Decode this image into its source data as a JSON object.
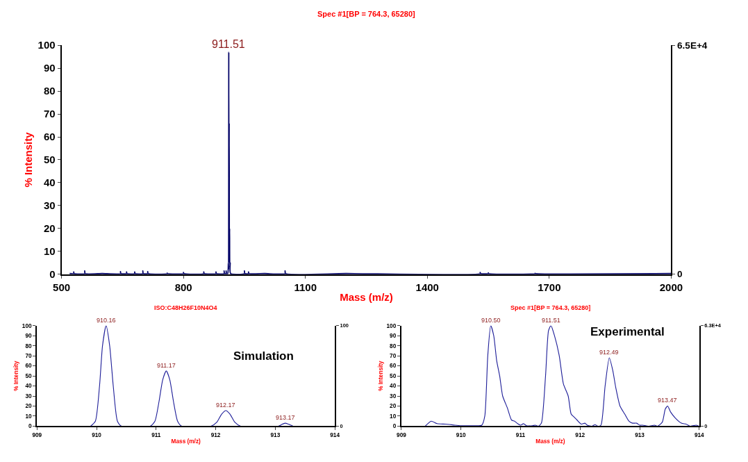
{
  "chart_data": [
    {
      "type": "line",
      "title": "Spec #1[BP = 764.3, 65280]",
      "xlabel": "Mass (m/z)",
      "ylabel": "% Intensity",
      "series": [
        {
          "color": "#000066",
          "x": [
            520,
            530,
            530,
            531,
            557,
            557,
            558,
            600,
            645,
            645,
            646,
            660,
            660,
            661,
            680,
            680,
            681,
            700,
            700,
            701,
            712,
            712,
            713,
            760,
            760,
            761,
            800,
            800,
            801,
            850,
            850,
            851,
            880,
            880,
            881,
            900,
            900,
            901,
            905,
            905,
            906,
            909,
            910.5,
            911,
            911.51,
            912,
            912.5,
            913,
            913.5,
            914,
            915,
            916,
            950,
            950,
            951,
            960,
            960,
            961,
            1000,
            1050,
            1050,
            1051,
            1200,
            1530,
            1530,
            1531,
            1550,
            1550,
            1551,
            1665,
            1665,
            1666,
            2000
          ],
          "values": [
            0.3,
            0.3,
            1,
            0.3,
            0.3,
            1.5,
            0.3,
            0.3,
            0.3,
            1.2,
            0.3,
            0.3,
            1,
            0.3,
            0.3,
            1,
            0.3,
            0.3,
            1.5,
            0.3,
            0.3,
            1.2,
            0.3,
            0.3,
            0.5,
            0.3,
            0.3,
            0.8,
            0.3,
            0.3,
            1,
            0.3,
            0.3,
            1,
            0.3,
            0.3,
            1.5,
            0.3,
            0.3,
            1.5,
            0.3,
            0.3,
            5,
            2,
            97,
            10,
            66,
            5,
            20,
            3,
            5,
            0.3,
            0.3,
            1.5,
            0.3,
            0.3,
            1,
            0.3,
            0.3,
            0.3,
            1.5,
            0.3,
            0.3,
            0.3,
            0.8,
            0.3,
            0.3,
            0.6,
            0.3,
            0.3,
            0.4,
            0.3,
            0.3
          ]
        }
      ],
      "xlim": [
        500,
        2000
      ],
      "xticks": [
        500,
        800,
        1100,
        1400,
        1700,
        2000
      ],
      "ylim": [
        0,
        100
      ],
      "yticks": [
        0,
        10,
        20,
        30,
        40,
        50,
        60,
        70,
        80,
        90,
        100
      ],
      "y2lim": [
        0,
        65000
      ],
      "y2ticks": [
        0,
        {
          "value": 65000,
          "label": "6.5E+4"
        }
      ],
      "annotations": [
        {
          "text": "911.51",
          "x": 911.51,
          "y": 97
        }
      ]
    },
    {
      "type": "line",
      "title": "ISO:C48H26F10N4O4",
      "xlabel": "Mass (m/z)",
      "ylabel": "% Intensity",
      "series": [
        {
          "color": "#1f1f99",
          "x": [
            909.9,
            909.98,
            910.05,
            910.1,
            910.16,
            910.22,
            910.28,
            910.35,
            910.42,
            910.9,
            910.98,
            911.05,
            911.11,
            911.17,
            911.23,
            911.29,
            911.36,
            911.43,
            911.92,
            912.02,
            912.1,
            912.17,
            912.24,
            912.32,
            912.42,
            913.05,
            913.12,
            913.17,
            913.22,
            913.3
          ],
          "values": [
            0,
            5,
            40,
            80,
            100,
            80,
            40,
            5,
            0,
            0,
            5,
            25,
            46,
            55,
            46,
            25,
            5,
            0,
            0,
            4,
            12,
            15.5,
            12,
            4,
            0,
            0,
            2,
            3,
            2,
            0
          ]
        }
      ],
      "xlim": [
        909,
        914
      ],
      "xticks": [
        909,
        910,
        911,
        912,
        913,
        914
      ],
      "ylim": [
        0,
        100
      ],
      "yticks": [
        0,
        10,
        20,
        30,
        40,
        50,
        60,
        70,
        80,
        90,
        100
      ],
      "y2lim": [
        0,
        100
      ],
      "y2ticks": [
        0,
        100
      ],
      "annotations": [
        {
          "text": "910.16",
          "x": 910.16,
          "y": 100
        },
        {
          "text": "911.17",
          "x": 911.17,
          "y": 55
        },
        {
          "text": "912.17",
          "x": 912.17,
          "y": 15.5
        },
        {
          "text": "913.17",
          "x": 913.17,
          "y": 3
        },
        "Simulation"
      ]
    },
    {
      "type": "line",
      "title": "Spec #1[BP = 764.3, 65280]",
      "xlabel": "Mass (m/z)",
      "ylabel": "% Intensity",
      "series": [
        {
          "color": "#1f1f99",
          "x": [
            909.4,
            909.5,
            909.6,
            909.75,
            909.9,
            910.0,
            910.2,
            910.35,
            910.4,
            910.45,
            910.5,
            910.55,
            910.6,
            910.65,
            910.7,
            910.78,
            910.85,
            910.9,
            910.95,
            911.0,
            911.05,
            911.1,
            911.2,
            911.25,
            911.3,
            911.35,
            911.42,
            911.47,
            911.51,
            911.57,
            911.65,
            911.72,
            911.8,
            911.85,
            911.9,
            911.95,
            912.02,
            912.08,
            912.12,
            912.2,
            912.25,
            912.3,
            912.35,
            912.42,
            912.49,
            912.55,
            912.6,
            912.67,
            912.75,
            912.82,
            912.88,
            912.95,
            913.0,
            913.05,
            913.15,
            913.25,
            913.3,
            913.38,
            913.43,
            913.47,
            913.52,
            913.6,
            913.7,
            913.78,
            913.85,
            913.95,
            914.0
          ],
          "values": [
            0,
            5,
            2.5,
            2,
            1,
            0.5,
            0.5,
            1,
            10,
            70,
            100,
            90,
            65,
            50,
            30,
            18,
            6,
            5,
            2.5,
            1,
            2.5,
            0.5,
            0.5,
            1,
            0,
            3,
            50,
            95,
            100,
            90,
            70,
            42,
            30,
            12,
            9,
            6,
            2,
            3,
            1,
            0,
            1.5,
            0,
            1,
            40,
            68,
            55,
            38,
            20,
            12,
            5,
            3,
            3,
            1,
            1,
            0,
            1,
            0,
            4,
            17,
            20,
            14,
            8,
            3,
            2,
            0,
            1,
            0
          ]
        }
      ],
      "xlim": [
        909,
        914
      ],
      "xticks": [
        909,
        910,
        911,
        912,
        913,
        914
      ],
      "ylim": [
        0,
        100
      ],
      "yticks": [
        0,
        10,
        20,
        30,
        40,
        50,
        60,
        70,
        80,
        90,
        100
      ],
      "y2lim": [
        0,
        63000
      ],
      "y2ticks": [
        0,
        {
          "value": 63000,
          "label": "6.3E+4"
        }
      ],
      "annotations": [
        {
          "text": "910.50",
          "x": 910.5,
          "y": 100
        },
        {
          "text": "911.51",
          "x": 911.51,
          "y": 100
        },
        {
          "text": "912.49",
          "x": 912.49,
          "y": 68
        },
        {
          "text": "913.47",
          "x": 913.47,
          "y": 20
        },
        "Experimental"
      ]
    }
  ]
}
